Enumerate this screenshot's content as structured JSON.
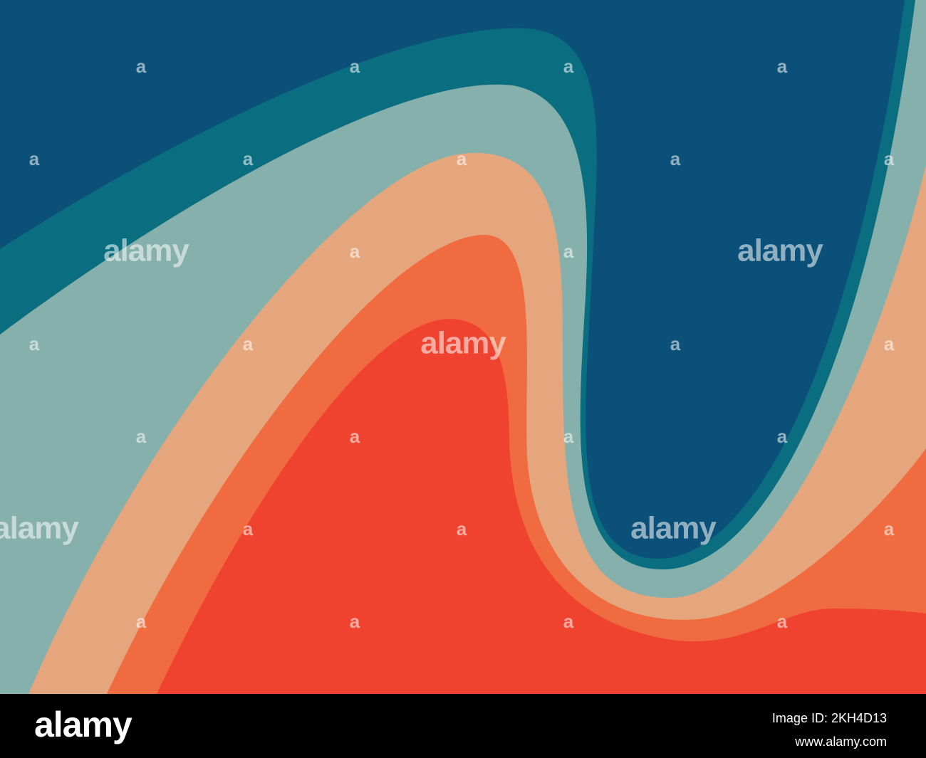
{
  "watermark": {
    "large": "alamy",
    "small": "a"
  },
  "footer": {
    "logo": "alamy",
    "image_id": "Image ID: 2KH4D13",
    "url": "www.alamy.com"
  }
}
